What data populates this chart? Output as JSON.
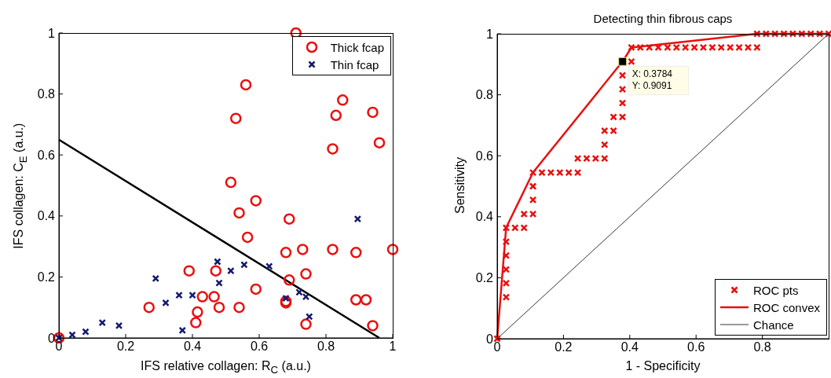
{
  "chart_data": [
    {
      "type": "scatter",
      "xlabel": "IFS relative collagen: R$_{C}$ (a.u.)",
      "ylabel": "IFS collagen: C$_{E}$ (a.u.)",
      "xlim": [
        0,
        1
      ],
      "ylim": [
        0,
        1
      ],
      "xticks": [
        0,
        0.2,
        0.4,
        0.6,
        0.8,
        1
      ],
      "yticks": [
        0,
        0.2,
        0.4,
        0.6,
        0.8,
        1
      ],
      "grid": false,
      "legend": "top right",
      "series": [
        {
          "name": "Thick fcap",
          "color": "#e8100f",
          "marker": "circle",
          "x": [
            0,
            0.71,
            0.56,
            0.53,
            0.85,
            0.83,
            0.94,
            0.82,
            0.96,
            0.515,
            0.59,
            0.54,
            0.69,
            0.565,
            0.68,
            0.73,
            0.82,
            0.89,
            1.0,
            0.39,
            0.47,
            0.74,
            0.69,
            0.59,
            0.43,
            0.465,
            0.68,
            0.68,
            0.89,
            0.92,
            0.27,
            0.415,
            0.41,
            0.48,
            0.54,
            0.74,
            0.94
          ],
          "values": [
            0,
            1.0,
            0.83,
            0.72,
            0.78,
            0.73,
            0.74,
            0.62,
            0.64,
            0.51,
            0.45,
            0.41,
            0.39,
            0.33,
            0.28,
            0.29,
            0.29,
            0.28,
            0.29,
            0.22,
            0.22,
            0.21,
            0.19,
            0.16,
            0.135,
            0.135,
            0.12,
            0.115,
            0.125,
            0.125,
            0.1,
            0.085,
            0.05,
            0.1,
            0.1,
            0.045,
            0.04
          ]
        },
        {
          "name": "Thin fcap",
          "color": "#141a6e",
          "marker": "cross",
          "x": [
            0,
            0.04,
            0.08,
            0.13,
            0.18,
            0.29,
            0.32,
            0.36,
            0.4,
            0.37,
            0.475,
            0.48,
            0.515,
            0.555,
            0.63,
            0.68,
            0.72,
            0.74,
            0.75,
            0.895
          ],
          "values": [
            0,
            0.01,
            0.02,
            0.05,
            0.04,
            0.195,
            0.115,
            0.14,
            0.14,
            0.025,
            0.25,
            0.18,
            0.22,
            0.24,
            0.235,
            0.13,
            0.15,
            0.135,
            0.07,
            0.39
          ]
        },
        {
          "type": "line",
          "color": "#000000",
          "x": [
            0,
            0.96
          ],
          "values": [
            0.65,
            0
          ]
        }
      ]
    },
    {
      "type": "scatter",
      "title": "Detecting thin fibrous caps",
      "xlabel": "1 - Specificity",
      "ylabel": "Sensitivity",
      "xlim": [
        0,
        1
      ],
      "ylim": [
        0,
        1
      ],
      "xticks": [
        0,
        0.2,
        0.4,
        0.6,
        0.8
      ],
      "yticks": [
        0,
        0.2,
        0.4,
        0.6,
        0.8,
        1
      ],
      "grid": false,
      "legend": "bottom right",
      "annotations": [
        {
          "text": "X: 0.3784\nY: 0.9091",
          "x": 0.3784,
          "y": 0.9091
        }
      ],
      "series": [
        {
          "name": "ROC pts",
          "color": "#e8100f",
          "marker": "cross",
          "x": [
            0,
            0.027,
            0.027,
            0.027,
            0.027,
            0.027,
            0.027,
            0.054,
            0.081,
            0.081,
            0.108,
            0.108,
            0.108,
            0.108,
            0.135,
            0.162,
            0.189,
            0.216,
            0.243,
            0.243,
            0.27,
            0.297,
            0.324,
            0.324,
            0.324,
            0.351,
            0.351,
            0.378,
            0.378,
            0.378,
            0.378,
            0.405,
            0.405,
            0.432,
            0.459,
            0.486,
            0.514,
            0.541,
            0.568,
            0.595,
            0.622,
            0.649,
            0.676,
            0.703,
            0.73,
            0.757,
            0.784,
            0.784,
            0.811,
            0.838,
            0.865,
            0.892,
            0.919,
            0.946,
            0.973,
            1.0
          ],
          "values": [
            0,
            0.136,
            0.182,
            0.227,
            0.273,
            0.318,
            0.364,
            0.364,
            0.364,
            0.409,
            0.409,
            0.455,
            0.5,
            0.545,
            0.545,
            0.545,
            0.545,
            0.545,
            0.545,
            0.591,
            0.591,
            0.591,
            0.591,
            0.636,
            0.682,
            0.682,
            0.727,
            0.727,
            0.773,
            0.818,
            0.864,
            0.909,
            0.955,
            0.955,
            0.955,
            0.955,
            0.955,
            0.955,
            0.955,
            0.955,
            0.955,
            0.955,
            0.955,
            0.955,
            0.955,
            0.955,
            0.955,
            1,
            1,
            1,
            1,
            1,
            1,
            1,
            1,
            1
          ]
        },
        {
          "name": "ROC convex",
          "type": "line",
          "color": "#e8100f",
          "x": [
            0,
            0.027,
            0.108,
            0.378,
            0.405,
            0.784,
            1
          ],
          "values": [
            0,
            0.364,
            0.545,
            0.909,
            0.955,
            1,
            1
          ]
        },
        {
          "name": "Chance",
          "type": "line",
          "color": "#000000",
          "x": [
            0,
            1
          ],
          "values": [
            0,
            1
          ]
        }
      ]
    }
  ]
}
